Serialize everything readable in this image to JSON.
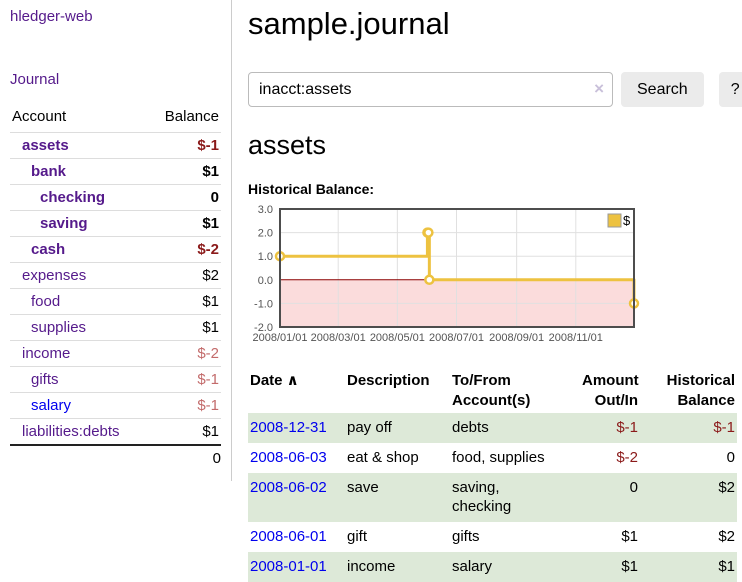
{
  "brand": "hledger-web",
  "nav": {
    "journal": "Journal"
  },
  "sidebar": {
    "account_header": "Account",
    "balance_header": "Balance",
    "accounts": [
      {
        "name": "assets",
        "indent": 1,
        "balance": "$-1",
        "bold": true,
        "negative": true,
        "visited": true
      },
      {
        "name": "bank",
        "indent": 2,
        "balance": "$1",
        "bold": true,
        "negative": false,
        "visited": true
      },
      {
        "name": "checking",
        "indent": 3,
        "balance": "0",
        "bold": true,
        "negative": false,
        "visited": true
      },
      {
        "name": "saving",
        "indent": 3,
        "balance": "$1",
        "bold": true,
        "negative": false,
        "visited": true
      },
      {
        "name": "cash",
        "indent": 2,
        "balance": "$-2",
        "bold": true,
        "negative": true,
        "visited": true
      },
      {
        "name": "expenses",
        "indent": 1,
        "balance": "$2",
        "bold": false,
        "negative": false,
        "visited": true
      },
      {
        "name": "food",
        "indent": 2,
        "balance": "$1",
        "bold": false,
        "negative": false,
        "visited": true
      },
      {
        "name": "supplies",
        "indent": 2,
        "balance": "$1",
        "bold": false,
        "negative": false,
        "visited": true
      },
      {
        "name": "income",
        "indent": 1,
        "balance": "$-2",
        "bold": false,
        "negative": true,
        "visited": true
      },
      {
        "name": "gifts",
        "indent": 2,
        "balance": "$-1",
        "bold": false,
        "negative": true,
        "visited": true
      },
      {
        "name": "salary",
        "indent": 2,
        "balance": "$-1",
        "bold": false,
        "negative": true,
        "visited": false
      },
      {
        "name": "liabilities:debts",
        "indent": 1,
        "balance": "$1",
        "bold": false,
        "negative": false,
        "visited": true
      }
    ],
    "total": "0"
  },
  "header": {
    "title": "sample.journal"
  },
  "search": {
    "value": "inacct:assets",
    "clear_label": "×",
    "button_label": "Search",
    "help_label": "?"
  },
  "account_page": {
    "heading": "assets",
    "chart_title": "Historical Balance:"
  },
  "chart_data": {
    "type": "line",
    "title": "Historical Balance",
    "step": true,
    "legend": [
      {
        "label": "$",
        "color": "#edc240"
      }
    ],
    "ylim": [
      -2,
      3
    ],
    "yticks": [
      "3.0",
      "2.0",
      "1.0",
      "0.0",
      "-1.0",
      "-2.0"
    ],
    "xticks": [
      {
        "label": "2008/01/01",
        "day": 0
      },
      {
        "label": "2008/03/01",
        "day": 60
      },
      {
        "label": "2008/05/01",
        "day": 121
      },
      {
        "label": "2008/07/01",
        "day": 182
      },
      {
        "label": "2008/09/01",
        "day": 244
      },
      {
        "label": "2008/11/01",
        "day": 305
      }
    ],
    "x_range": [
      "2008-01-01",
      "2008-12-31"
    ],
    "days_total": 365,
    "series": [
      {
        "name": "$",
        "color": "#edc240",
        "points": [
          {
            "date": "2008-01-01",
            "day": 0,
            "value": 1
          },
          {
            "date": "2008-06-01",
            "day": 152,
            "value": 2
          },
          {
            "date": "2008-06-02",
            "day": 153,
            "value": 2
          },
          {
            "date": "2008-06-03",
            "day": 154,
            "value": 0
          },
          {
            "date": "2008-12-31",
            "day": 365,
            "value": -1
          }
        ]
      }
    ],
    "negative_region_color": "#fbdcdc",
    "zero_line_color": "#8b0000",
    "grid": true,
    "legend_position": "top-right"
  },
  "register": {
    "headers": [
      {
        "line1": "Date",
        "line2": "",
        "sort_icon": "∧",
        "align": "left"
      },
      {
        "line1": "Description",
        "line2": "",
        "align": "left"
      },
      {
        "line1": "To/From",
        "line2": "Account(s)",
        "align": "left"
      },
      {
        "line1": "Amount",
        "line2": "Out/In",
        "align": "right"
      },
      {
        "line1": "Historical",
        "line2": "Balance",
        "align": "right"
      }
    ],
    "rows": [
      {
        "date": "2008-12-31",
        "description": "pay off",
        "accounts": "debts",
        "amount": "$-1",
        "amount_negative": true,
        "balance": "$-1",
        "balance_negative": true,
        "shaded": true
      },
      {
        "date": "2008-06-03",
        "description": "eat & shop",
        "accounts": "food, supplies",
        "amount": "$-2",
        "amount_negative": true,
        "balance": "0",
        "balance_negative": false,
        "shaded": false
      },
      {
        "date": "2008-06-02",
        "description": "save",
        "accounts": "saving,\nchecking",
        "amount": "0",
        "amount_negative": false,
        "balance": "$2",
        "balance_negative": false,
        "shaded": true
      },
      {
        "date": "2008-06-01",
        "description": "gift",
        "accounts": "gifts",
        "amount": "$1",
        "amount_negative": false,
        "balance": "$2",
        "balance_negative": false,
        "shaded": false
      },
      {
        "date": "2008-01-01",
        "description": "income",
        "accounts": "salary",
        "amount": "$1",
        "amount_negative": false,
        "balance": "$1",
        "balance_negative": false,
        "shaded": true
      }
    ]
  },
  "colors": {
    "link_visited_purple": "#551a8b",
    "link_unvisited_blue": "#0000ee",
    "negative_dark_red": "#8b1a1a",
    "negative_light_red": "#c36b6b",
    "row_stripe_green": "#dde9d8",
    "chart_gold": "#edc240",
    "chart_negative_pink": "#fbdcdc",
    "chart_zero_line": "#8b0000"
  }
}
